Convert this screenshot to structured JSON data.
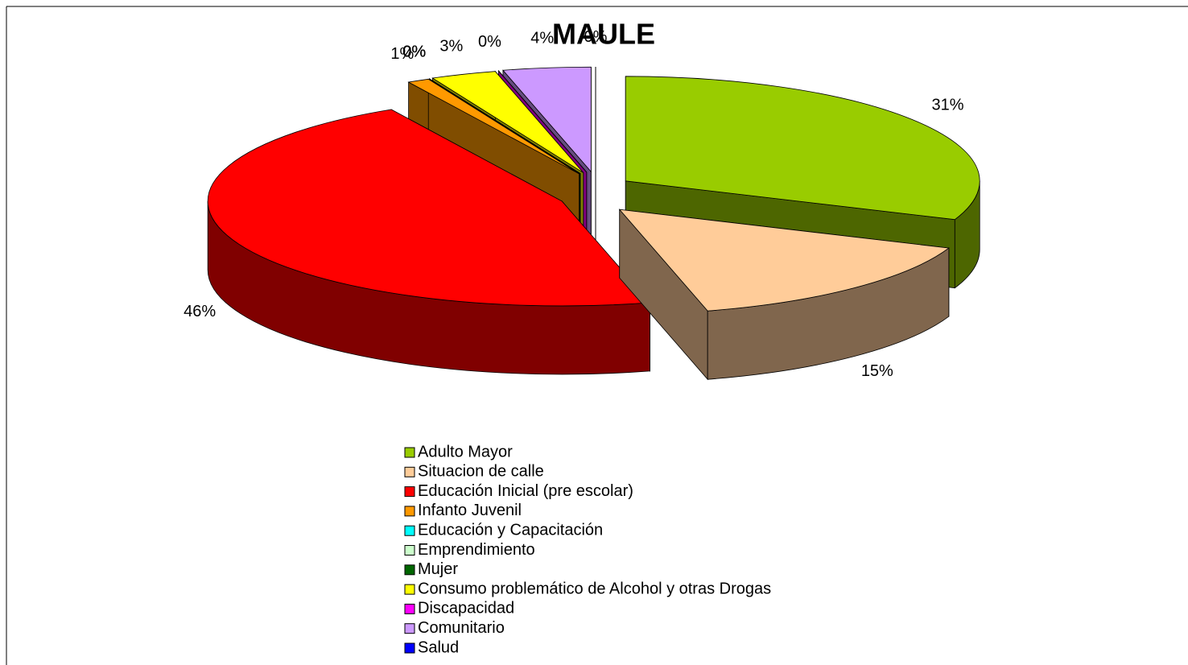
{
  "chart_data": {
    "type": "pie3d",
    "title": "MAULE",
    "categories": [
      "Adulto Mayor",
      "Situacion de calle",
      "Educación Inicial (pre escolar)",
      "Infanto Juvenil",
      "Educación y Capacitación",
      "Emprendimiento",
      "Mujer",
      "Consumo problemático de Alcohol y otras Drogas",
      "Discapacidad",
      "Comunitario",
      "Salud"
    ],
    "values": [
      31,
      15,
      46,
      1,
      0,
      0,
      0,
      3,
      0,
      4,
      0
    ],
    "value_labels": [
      "31%",
      "15%",
      "46%",
      "1%",
      "0%",
      "0%",
      "0%",
      "3%",
      "0%",
      "4%",
      "0%"
    ],
    "colors": [
      "#99cc00",
      "#ffcc99",
      "#ff0000",
      "#ff9900",
      "#00ffff",
      "#ccffcc",
      "#006600",
      "#ffff00",
      "#ff00ff",
      "#cc99ff",
      "#0000ff"
    ],
    "legend": "bottom"
  }
}
